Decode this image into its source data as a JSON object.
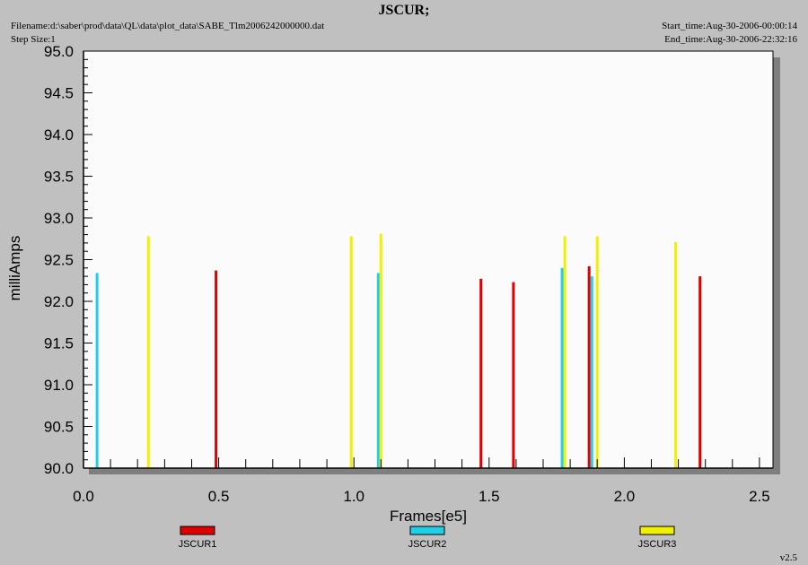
{
  "header": {
    "title": "JSCUR;",
    "filename": "Filename:d:\\saber\\prod\\data\\QL\\data\\plot_data\\SABE_Tlm2006242000000.dat",
    "step_size": "Step Size:1",
    "start_time": "Start_time:Aug-30-2006-00:00:14",
    "end_time": "End_time:Aug-30-2006-22:32:16"
  },
  "version": "v2.5",
  "chart_data": {
    "type": "bar",
    "xlabel": "Frames[e5]",
    "ylabel": "milliAmps",
    "xlim": [
      0.0,
      2.55
    ],
    "ylim": [
      90.0,
      95.0
    ],
    "xticks": [
      0.0,
      0.5,
      1.0,
      1.5,
      2.0,
      2.5
    ],
    "xtick_labels": [
      "0.0",
      "0.5",
      "1.0",
      "1.5",
      "2.0",
      "2.5"
    ],
    "yticks": [
      90.0,
      90.5,
      91.0,
      91.5,
      92.0,
      92.5,
      93.0,
      93.5,
      94.0,
      94.5,
      95.0
    ],
    "ytick_labels": [
      "90.0",
      "90.5",
      "91.0",
      "91.5",
      "92.0",
      "92.5",
      "93.0",
      "93.5",
      "94.0",
      "94.5",
      "95.0"
    ],
    "grid": false,
    "legend_position": "bottom",
    "series": [
      {
        "name": "JSCUR1",
        "color": "#e00000",
        "points": [
          {
            "x": 0.49,
            "y": 92.37
          },
          {
            "x": 1.47,
            "y": 92.27
          },
          {
            "x": 1.59,
            "y": 92.23
          },
          {
            "x": 1.87,
            "y": 92.42
          },
          {
            "x": 2.28,
            "y": 92.3
          }
        ]
      },
      {
        "name": "JSCUR2",
        "color": "#1ecfe6",
        "points": [
          {
            "x": 0.05,
            "y": 92.34
          },
          {
            "x": 1.09,
            "y": 92.34
          },
          {
            "x": 1.77,
            "y": 92.4
          },
          {
            "x": 1.88,
            "y": 92.3
          }
        ]
      },
      {
        "name": "JSCUR3",
        "color": "#f0f000",
        "points": [
          {
            "x": 0.24,
            "y": 92.78
          },
          {
            "x": 0.99,
            "y": 92.78
          },
          {
            "x": 1.1,
            "y": 92.81
          },
          {
            "x": 1.78,
            "y": 92.78
          },
          {
            "x": 1.9,
            "y": 92.78
          },
          {
            "x": 2.19,
            "y": 92.71
          }
        ]
      }
    ]
  }
}
